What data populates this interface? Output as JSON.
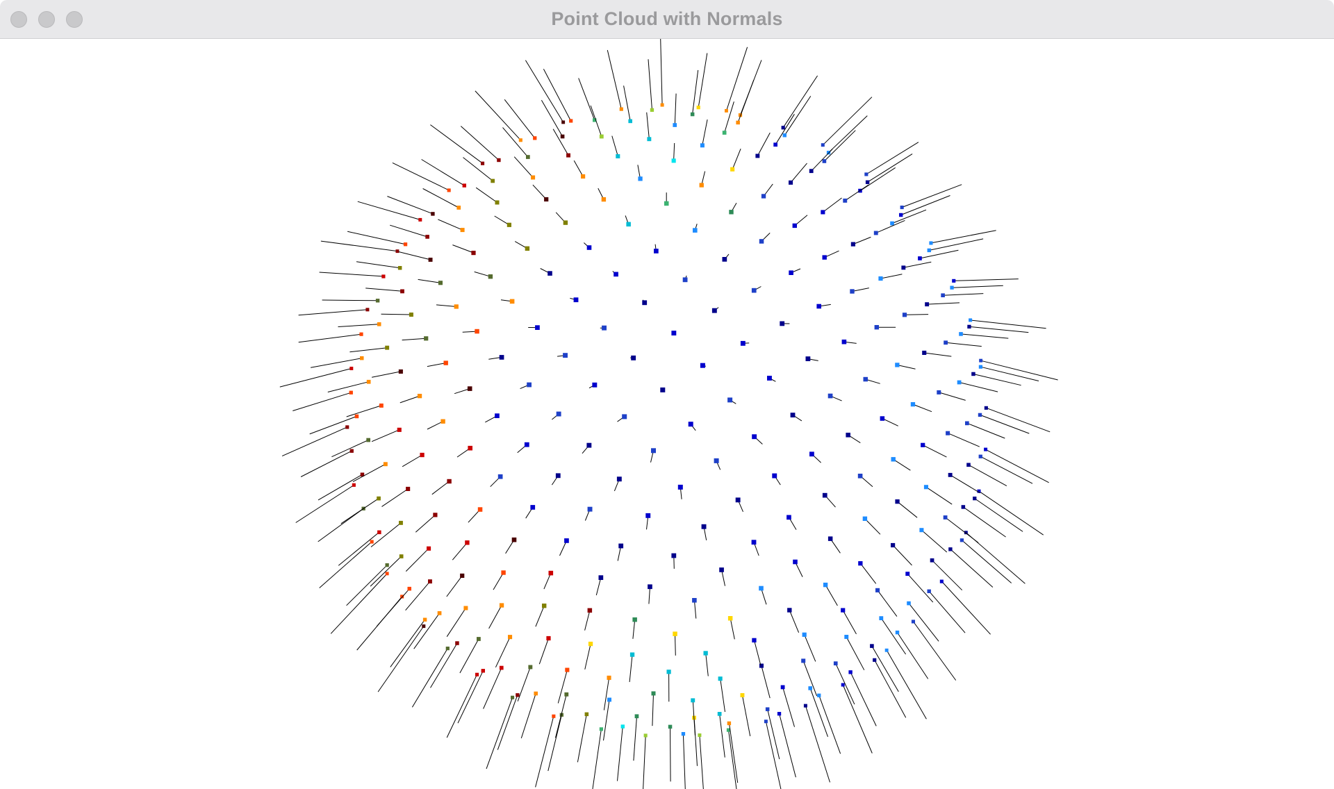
{
  "window": {
    "title": "Point Cloud with Normals"
  },
  "traffic_lights": {
    "close_color": "#c9c9cb",
    "minimize_color": "#c9c9cb",
    "zoom_color": "#c9c9cb"
  },
  "scene": {
    "background": "#ffffff",
    "normal_line_color": "#000000",
    "colormap_palette": [
      "#00008b",
      "#0000cd",
      "#1e40c8",
      "#1e8cff",
      "#00bcd4",
      "#00e5ee",
      "#3cb371",
      "#2e8b57",
      "#9acd32",
      "#ffd700",
      "#ff8c00",
      "#ff4500",
      "#cc0000",
      "#8b0000",
      "#4a0000",
      "#808000",
      "#556b2f"
    ]
  }
}
